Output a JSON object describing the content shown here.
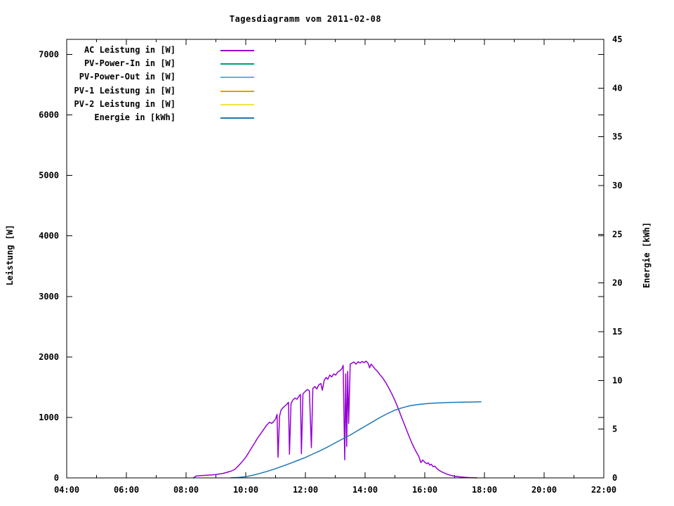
{
  "title": "Tagesdiagramm vom 2011-02-08",
  "y_axis": {
    "label": "Leistung [W]",
    "ticks": [
      0,
      1000,
      2000,
      3000,
      4000,
      5000,
      6000,
      7000
    ],
    "range": [
      0,
      7250
    ]
  },
  "y2_axis": {
    "label": "Energie [kWh]",
    "ticks": [
      0,
      5,
      10,
      15,
      20,
      25,
      30,
      35,
      40,
      45
    ],
    "range": [
      0,
      45
    ]
  },
  "x_axis": {
    "labeled_ticks": [
      "04:00",
      "06:00",
      "08:00",
      "10:00",
      "12:00",
      "14:00",
      "16:00",
      "18:00",
      "20:00",
      "22:00"
    ],
    "minor_tick_hours": [
      5,
      7,
      9,
      11,
      13,
      15,
      17,
      19,
      21
    ],
    "range": [
      "04:00",
      "22:00"
    ]
  },
  "chart_data": {
    "type": "line",
    "title": "Tagesdiagramm vom 2011-02-08",
    "xlabel": "",
    "ylabel": "Leistung [W]",
    "y2label": "Energie [kWh]",
    "ylim": [
      0,
      7250
    ],
    "y2lim": [
      0,
      45
    ],
    "xlim_hours": [
      4,
      22
    ],
    "grid": false,
    "legend_position": "top-left-inside",
    "series": [
      {
        "name": "AC Leistung in [W]",
        "color": "#9400D3",
        "axis": "y1",
        "points": [
          [
            "08:15",
            0
          ],
          [
            "08:20",
            30
          ],
          [
            "08:30",
            38
          ],
          [
            "08:45",
            45
          ],
          [
            "09:00",
            55
          ],
          [
            "09:15",
            75
          ],
          [
            "09:30",
            110
          ],
          [
            "09:38",
            140
          ],
          [
            "09:44",
            190
          ],
          [
            "09:50",
            240
          ],
          [
            "09:56",
            300
          ],
          [
            "10:00",
            340
          ],
          [
            "10:06",
            420
          ],
          [
            "10:12",
            500
          ],
          [
            "10:18",
            580
          ],
          [
            "10:24",
            660
          ],
          [
            "10:30",
            730
          ],
          [
            "10:36",
            800
          ],
          [
            "10:42",
            870
          ],
          [
            "10:48",
            920
          ],
          [
            "10:52",
            900
          ],
          [
            "10:56",
            930
          ],
          [
            "11:00",
            975
          ],
          [
            "11:03",
            1050
          ],
          [
            "11:05",
            340
          ],
          [
            "11:08",
            1020
          ],
          [
            "11:11",
            1120
          ],
          [
            "11:15",
            1160
          ],
          [
            "11:19",
            1190
          ],
          [
            "11:23",
            1220
          ],
          [
            "11:26",
            1250
          ],
          [
            "11:28",
            390
          ],
          [
            "11:31",
            1230
          ],
          [
            "11:35",
            1290
          ],
          [
            "11:39",
            1320
          ],
          [
            "11:43",
            1300
          ],
          [
            "11:47",
            1350
          ],
          [
            "11:50",
            1380
          ],
          [
            "11:52",
            400
          ],
          [
            "11:55",
            1390
          ],
          [
            "12:00",
            1430
          ],
          [
            "12:04",
            1460
          ],
          [
            "12:08",
            1440
          ],
          [
            "12:12",
            500
          ],
          [
            "12:15",
            1480
          ],
          [
            "12:19",
            1510
          ],
          [
            "12:23",
            1470
          ],
          [
            "12:27",
            1540
          ],
          [
            "12:31",
            1560
          ],
          [
            "12:34",
            1450
          ],
          [
            "12:38",
            1620
          ],
          [
            "12:42",
            1660
          ],
          [
            "12:45",
            1630
          ],
          [
            "12:49",
            1700
          ],
          [
            "12:53",
            1670
          ],
          [
            "12:57",
            1720
          ],
          [
            "13:01",
            1700
          ],
          [
            "13:05",
            1750
          ],
          [
            "13:09",
            1770
          ],
          [
            "13:13",
            1800
          ],
          [
            "13:16",
            1860
          ],
          [
            "13:19",
            300
          ],
          [
            "13:21",
            1720
          ],
          [
            "13:23",
            520
          ],
          [
            "13:25",
            1760
          ],
          [
            "13:27",
            900
          ],
          [
            "13:30",
            1880
          ],
          [
            "13:34",
            1900
          ],
          [
            "13:38",
            1915
          ],
          [
            "13:42",
            1880
          ],
          [
            "13:46",
            1920
          ],
          [
            "13:50",
            1900
          ],
          [
            "13:54",
            1925
          ],
          [
            "13:58",
            1905
          ],
          [
            "14:02",
            1930
          ],
          [
            "14:06",
            1895
          ],
          [
            "14:09",
            1820
          ],
          [
            "14:12",
            1880
          ],
          [
            "14:16",
            1845
          ],
          [
            "14:20",
            1800
          ],
          [
            "14:25",
            1760
          ],
          [
            "14:30",
            1705
          ],
          [
            "14:36",
            1645
          ],
          [
            "14:42",
            1570
          ],
          [
            "14:48",
            1480
          ],
          [
            "14:54",
            1385
          ],
          [
            "15:00",
            1280
          ],
          [
            "15:06",
            1160
          ],
          [
            "15:12",
            1030
          ],
          [
            "15:18",
            905
          ],
          [
            "15:24",
            780
          ],
          [
            "15:30",
            655
          ],
          [
            "15:36",
            540
          ],
          [
            "15:42",
            440
          ],
          [
            "15:48",
            355
          ],
          [
            "15:52",
            255
          ],
          [
            "15:56",
            295
          ],
          [
            "16:00",
            260
          ],
          [
            "16:04",
            235
          ],
          [
            "16:07",
            250
          ],
          [
            "16:10",
            210
          ],
          [
            "16:13",
            225
          ],
          [
            "16:17",
            185
          ],
          [
            "16:20",
            195
          ],
          [
            "16:24",
            160
          ],
          [
            "16:28",
            130
          ],
          [
            "16:33",
            105
          ],
          [
            "16:38",
            85
          ],
          [
            "16:45",
            60
          ],
          [
            "16:52",
            42
          ],
          [
            "17:00",
            28
          ],
          [
            "17:10",
            18
          ],
          [
            "17:20",
            10
          ],
          [
            "17:30",
            5
          ],
          [
            "17:38",
            2
          ],
          [
            "17:45",
            0
          ]
        ]
      },
      {
        "name": "PV-Power-In in [W]",
        "color": "#009E73",
        "axis": "y1",
        "points": []
      },
      {
        "name": "PV-Power-Out in [W]",
        "color": "#56B4E9",
        "axis": "y1",
        "points": []
      },
      {
        "name": "PV-1 Leistung in [W]",
        "color": "#E69F00",
        "axis": "y1",
        "points": []
      },
      {
        "name": "PV-2 Leistung in [W]",
        "color": "#F0E442",
        "axis": "y1",
        "points": []
      },
      {
        "name": "Energie in [kWh]",
        "color": "#1F77B4",
        "axis": "y2",
        "points": [
          [
            "09:30",
            0.01
          ],
          [
            "09:45",
            0.04
          ],
          [
            "10:00",
            0.12
          ],
          [
            "10:15",
            0.28
          ],
          [
            "10:30",
            0.48
          ],
          [
            "10:45",
            0.7
          ],
          [
            "11:00",
            0.95
          ],
          [
            "11:15",
            1.22
          ],
          [
            "11:30",
            1.5
          ],
          [
            "11:45",
            1.8
          ],
          [
            "12:00",
            2.1
          ],
          [
            "12:15",
            2.45
          ],
          [
            "12:30",
            2.8
          ],
          [
            "12:45",
            3.18
          ],
          [
            "13:00",
            3.6
          ],
          [
            "13:15",
            4.0
          ],
          [
            "13:30",
            4.4
          ],
          [
            "13:45",
            4.85
          ],
          [
            "14:00",
            5.3
          ],
          [
            "14:15",
            5.75
          ],
          [
            "14:30",
            6.2
          ],
          [
            "14:45",
            6.6
          ],
          [
            "15:00",
            6.95
          ],
          [
            "15:15",
            7.2
          ],
          [
            "15:30",
            7.4
          ],
          [
            "15:45",
            7.52
          ],
          [
            "16:00",
            7.6
          ],
          [
            "16:15",
            7.66
          ],
          [
            "16:30",
            7.7
          ],
          [
            "16:45",
            7.73
          ],
          [
            "17:00",
            7.75
          ],
          [
            "17:15",
            7.77
          ],
          [
            "17:30",
            7.78
          ],
          [
            "17:53",
            7.8
          ]
        ]
      }
    ]
  }
}
